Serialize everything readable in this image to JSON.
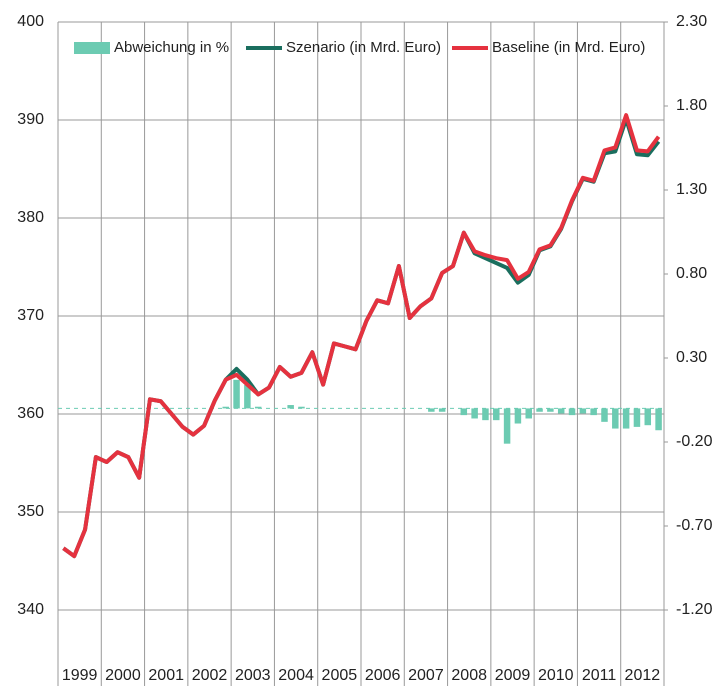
{
  "chart_data": {
    "type": "line",
    "categories": [
      null,
      "1999",
      null,
      null,
      null,
      "2000",
      null,
      null,
      null,
      "2001",
      null,
      null,
      null,
      "2002",
      null,
      null,
      null,
      "2003",
      null,
      null,
      null,
      "2004",
      null,
      null,
      null,
      "2005",
      null,
      null,
      null,
      "2006",
      null,
      null,
      null,
      "2007",
      null,
      null,
      null,
      "2008",
      null,
      null,
      null,
      "2009",
      null,
      null,
      null,
      "2010",
      null,
      null,
      null,
      "2011",
      null,
      null,
      null,
      "2012",
      null,
      null
    ],
    "ylim": [
      340,
      400
    ],
    "yticks": [
      340,
      350,
      360,
      370,
      380,
      390,
      400
    ],
    "y2lim": [
      -1.2,
      2.3
    ],
    "y2ticks": [
      {
        "value": -1.2,
        "label": "-1.20"
      },
      {
        "value": -0.7,
        "label": "-0.70"
      },
      {
        "value": -0.2,
        "label": "-0.20"
      },
      {
        "value": 0.3,
        "label": "0.30"
      },
      {
        "value": 0.8,
        "label": "0.80"
      },
      {
        "value": 1.3,
        "label": "1.30"
      },
      {
        "value": 1.8,
        "label": "1.80"
      },
      {
        "value": 2.3,
        "label": "2.30"
      }
    ],
    "grid": true,
    "legend": "top",
    "series": [
      {
        "name": "Abweichung in %",
        "type": "bar",
        "axis": "y2",
        "color": "#6ccbb2",
        "values": [
          0,
          0,
          0,
          0,
          0,
          0,
          0,
          0,
          0,
          0,
          0,
          0,
          0,
          0,
          0,
          0.01,
          0.17,
          0.14,
          0.01,
          0,
          0,
          0.02,
          0.01,
          0,
          0,
          0,
          0,
          0,
          0,
          0,
          0,
          0,
          0,
          0,
          -0.02,
          -0.02,
          0,
          -0.04,
          -0.06,
          -0.07,
          -0.07,
          -0.21,
          -0.09,
          -0.06,
          -0.02,
          -0.02,
          -0.03,
          -0.04,
          -0.03,
          -0.04,
          -0.08,
          -0.12,
          -0.12,
          -0.11,
          -0.1,
          -0.13
        ]
      },
      {
        "name": "Szenario (in Mrd. Euro)",
        "type": "line",
        "color": "#1a6e5e",
        "values": [
          346.3,
          345.5,
          348.2,
          355.6,
          355.1,
          356.1,
          355.6,
          353.5,
          361.5,
          361.3,
          360.0,
          358.7,
          357.9,
          358.8,
          361.4,
          363.5,
          364.6,
          363.5,
          362.0,
          362.7,
          364.8,
          363.8,
          364.2,
          366.3,
          363.0,
          367.2,
          366.9,
          366.6,
          369.5,
          371.6,
          371.3,
          375.1,
          369.8,
          371.0,
          371.8,
          374.4,
          375.1,
          378.5,
          376.4,
          375.9,
          375.4,
          374.9,
          373.4,
          374.2,
          376.7,
          377.1,
          378.9,
          381.7,
          384.0,
          383.7,
          386.6,
          386.8,
          390.1,
          386.5,
          386.4,
          387.8
        ]
      },
      {
        "name": "Baseline (in Mrd. Euro)",
        "type": "line",
        "color": "#e5323f",
        "values": [
          346.3,
          345.5,
          348.2,
          355.6,
          355.1,
          356.1,
          355.6,
          353.5,
          361.5,
          361.3,
          360.0,
          358.7,
          357.9,
          358.8,
          361.4,
          363.5,
          364.0,
          363.0,
          362.0,
          362.7,
          364.8,
          363.8,
          364.2,
          366.3,
          363.0,
          367.2,
          366.9,
          366.6,
          369.5,
          371.6,
          371.3,
          375.1,
          369.8,
          371.0,
          371.8,
          374.4,
          375.1,
          378.5,
          376.6,
          376.2,
          375.9,
          375.7,
          373.8,
          374.5,
          376.8,
          377.2,
          379.0,
          381.8,
          384.1,
          383.8,
          386.9,
          387.2,
          390.5,
          386.9,
          386.8,
          388.3
        ]
      }
    ]
  }
}
